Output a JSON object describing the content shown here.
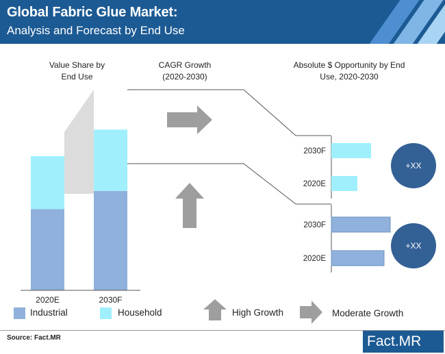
{
  "header": {
    "title": "Global Fabric Glue Market:",
    "subtitle": "Analysis and Forecast  by End Use"
  },
  "labels": {
    "value_share": "Value Share by End Use",
    "cagr": "CAGR Growth (2020-2030)",
    "absolute": "Absolute $ Opportunity by End Use, 2020-2030",
    "bubble_top": "+XX",
    "bubble_bottom": "+XX"
  },
  "legend": {
    "industrial": "Industrial",
    "household": "Household",
    "high_growth": "High Growth",
    "moderate_growth": "Moderate Growth"
  },
  "footer": {
    "source": "Source: Fact.MR",
    "logo_a": "Fact",
    "logo_b": ".MR"
  },
  "colors": {
    "header": "#1c5a93",
    "industrial": "#8fb1db",
    "household": "#9ff0fc",
    "bubble": "#336095",
    "arrow": "#9e9e9e"
  },
  "chart_data": [
    {
      "type": "bar",
      "title": "Value Share by End Use",
      "stacked": true,
      "categories": [
        "2020E",
        "2030F"
      ],
      "series": [
        {
          "name": "Industrial",
          "values": [
            49,
            60
          ]
        },
        {
          "name": "Household",
          "values": [
            32,
            37
          ]
        }
      ]
    },
    {
      "type": "bar",
      "orientation": "horizontal",
      "title": "Absolute $ Opportunity by End Use, 2020-2030",
      "groups": [
        {
          "name": "Household",
          "categories": [
            "2030F",
            "2020E"
          ],
          "values": [
            58,
            38
          ]
        },
        {
          "name": "Industrial",
          "categories": [
            "2030F",
            "2020E"
          ],
          "values": [
            86,
            77
          ]
        }
      ]
    }
  ]
}
